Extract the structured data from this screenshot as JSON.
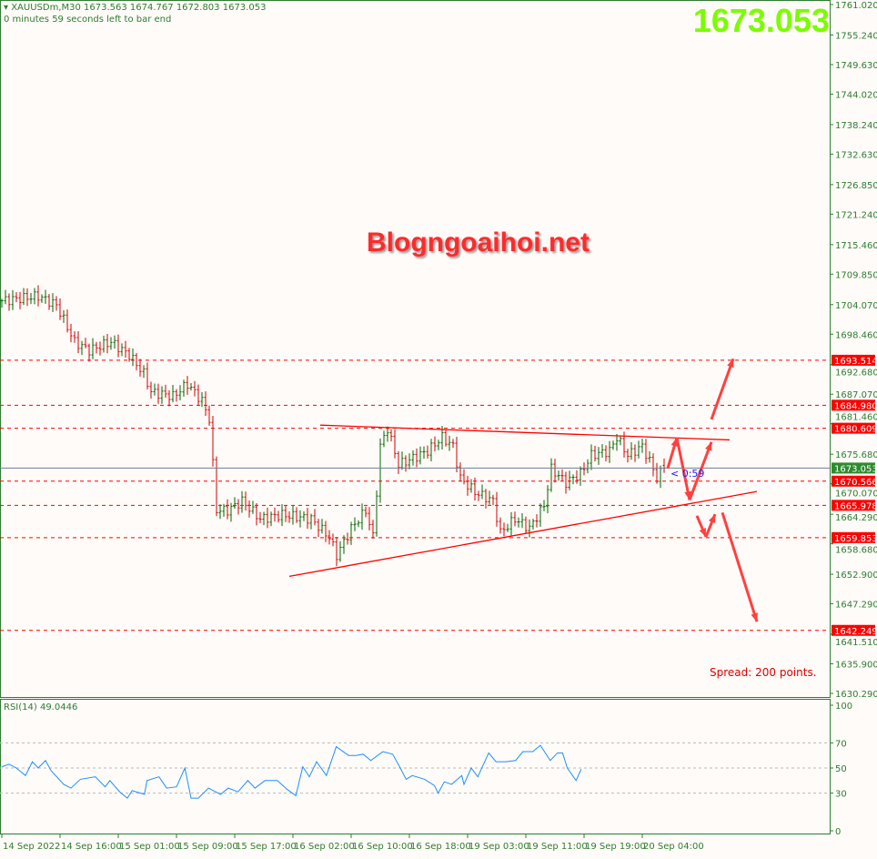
{
  "header": {
    "symbol_line": "XAUUSDm,M30  1673.563 1674.767 1672.803 1673.053",
    "timer_line": "0 minutes 59 seconds left to bar end"
  },
  "big_price": "1673.053",
  "watermark": "Blogngoaihoi.net",
  "spread_text": "Spread: 200 points.",
  "countdown": "< 0:59",
  "rsi_label": "RSI(14) 49.0446",
  "colors": {
    "axis": "#2e7d32",
    "bull": "#006400",
    "bear": "#d00000",
    "levels": "#ff0000",
    "current": "#6b7f99",
    "rsi": "#1e90ff",
    "big_price": "#7cfc00",
    "arrows": "#ff4040"
  },
  "chart_data": {
    "type": "candlestick",
    "symbol": "XAUUSDm",
    "timeframe": "M30",
    "ylim": [
      1630.29,
      1761.02
    ],
    "y_ticks": [
      "1761.020",
      "1755.240",
      "1749.630",
      "1744.020",
      "1738.240",
      "1732.630",
      "1726.850",
      "1721.240",
      "1715.460",
      "1709.850",
      "1704.070",
      "1698.460",
      "1692.680",
      "1687.070",
      "1681.460",
      "1675.680",
      "1670.070",
      "1664.290",
      "1658.680",
      "1652.900",
      "1647.290",
      "1641.510",
      "1635.900",
      "1630.290"
    ],
    "x_ticks": [
      {
        "bar": 0,
        "label": "14 Sep 2022"
      },
      {
        "bar": 16,
        "label": "14 Sep 16:00"
      },
      {
        "bar": 32,
        "label": "15 Sep 01:00"
      },
      {
        "bar": 48,
        "label": "15 Sep 09:00"
      },
      {
        "bar": 64,
        "label": "15 Sep 17:00"
      },
      {
        "bar": 80,
        "label": "16 Sep 02:00"
      },
      {
        "bar": 96,
        "label": "16 Sep 10:00"
      },
      {
        "bar": 112,
        "label": "16 Sep 18:00"
      },
      {
        "bar": 128,
        "label": "19 Sep 03:00"
      },
      {
        "bar": 144,
        "label": "19 Sep 11:00"
      },
      {
        "bar": 160,
        "label": "19 Sep 19:00"
      },
      {
        "bar": 176,
        "label": "20 Sep 04:00"
      }
    ],
    "close_path": [
      [
        0,
        1704.8
      ],
      [
        10,
        1705.7
      ],
      [
        15,
        1704
      ],
      [
        20,
        1697
      ],
      [
        24,
        1695.4
      ],
      [
        30,
        1697
      ],
      [
        35,
        1694.5
      ],
      [
        39,
        1691
      ],
      [
        41,
        1687.5
      ],
      [
        47,
        1686.7
      ],
      [
        51,
        1689
      ],
      [
        55,
        1685.8
      ],
      [
        57,
        1682.4
      ],
      [
        59,
        1665.1
      ],
      [
        62,
        1665
      ],
      [
        66,
        1666.8
      ],
      [
        71,
        1663.4
      ],
      [
        77,
        1664.2
      ],
      [
        85,
        1663.4
      ],
      [
        90,
        1659.9
      ],
      [
        92,
        1656.5
      ],
      [
        96,
        1661.6
      ],
      [
        100,
        1665
      ],
      [
        102,
        1660
      ],
      [
        104,
        1677.2
      ],
      [
        106,
        1680.6
      ],
      [
        109,
        1673.7
      ],
      [
        112,
        1674.6
      ],
      [
        117,
        1676.3
      ],
      [
        121,
        1678.9
      ],
      [
        124,
        1677.2
      ],
      [
        126,
        1671.1
      ],
      [
        130,
        1668.5
      ],
      [
        135,
        1666.8
      ],
      [
        137,
        1660.8
      ],
      [
        141,
        1663.4
      ],
      [
        145,
        1661.6
      ],
      [
        149,
        1666
      ],
      [
        151,
        1672.9
      ],
      [
        155,
        1670.3
      ],
      [
        159,
        1672
      ],
      [
        162,
        1675.5
      ],
      [
        167,
        1676.3
      ],
      [
        169,
        1678.9
      ],
      [
        172,
        1675.5
      ],
      [
        176,
        1677.2
      ],
      [
        179,
        1672.9
      ],
      [
        180,
        1671.1
      ],
      [
        182,
        1673.053
      ]
    ],
    "last_ohlc": {
      "open": 1673.563,
      "high": 1674.767,
      "low": 1672.803,
      "close": 1673.053
    },
    "levels": [
      {
        "price": 1693.514,
        "label": "1693.514",
        "style": "dashed"
      },
      {
        "price": 1684.98,
        "label": "1684.980",
        "style": "dashed"
      },
      {
        "price": 1680.609,
        "label": "1680.609",
        "style": "dashed"
      },
      {
        "price": 1673.053,
        "label": "1673.053",
        "style": "current"
      },
      {
        "price": 1670.566,
        "label": "1670.566",
        "style": "dashed"
      },
      {
        "price": 1665.978,
        "label": "1665.978",
        "style": "dashed"
      },
      {
        "price": 1659.853,
        "label": "1659.853",
        "style": "dashed"
      },
      {
        "price": 1642.249,
        "label": "1642.249",
        "style": "dashed"
      }
    ],
    "trendlines": [
      {
        "name": "upper",
        "from": [
          87.5,
          1681.2
        ],
        "to": [
          200,
          1678.4
        ]
      },
      {
        "name": "lower",
        "from": [
          79,
          1652.5
        ],
        "to": [
          207.5,
          1668.6
        ]
      }
    ],
    "arrows": [
      {
        "from": [
          183,
          1673
        ],
        "to": [
          185.5,
          1678.8
        ]
      },
      {
        "from": [
          185.5,
          1678.8
        ],
        "to": [
          189,
          1667
        ]
      },
      {
        "from": [
          189,
          1667
        ],
        "to": [
          195,
          1678
        ]
      },
      {
        "from": [
          195,
          1682.3
        ],
        "to": [
          201,
          1693.8
        ]
      },
      {
        "from": [
          191,
          1664
        ],
        "to": [
          193.5,
          1660
        ]
      },
      {
        "from": [
          193.5,
          1660
        ],
        "to": [
          196,
          1664.3
        ]
      },
      {
        "from": [
          198,
          1664.6
        ],
        "to": [
          207.5,
          1643.9
        ]
      }
    ],
    "rsi": {
      "period": 14,
      "last": 49.0446,
      "ylim": [
        0,
        100
      ],
      "y_ticks": [
        100,
        70,
        50,
        30,
        0
      ],
      "levels": [
        70,
        50,
        30
      ],
      "values": [
        [
          0,
          51
        ],
        [
          2,
          53
        ],
        [
          4,
          50
        ],
        [
          6.5,
          44
        ],
        [
          8.4,
          55
        ],
        [
          10,
          50
        ],
        [
          12,
          56
        ],
        [
          13.5,
          48
        ],
        [
          17,
          37
        ],
        [
          19,
          34
        ],
        [
          21.6,
          41
        ],
        [
          25.7,
          43
        ],
        [
          28.4,
          35
        ],
        [
          29.7,
          40
        ],
        [
          32.4,
          31
        ],
        [
          34.5,
          26
        ],
        [
          35.8,
          32
        ],
        [
          39.2,
          29
        ],
        [
          39.9,
          40
        ],
        [
          43.2,
          43
        ],
        [
          45.3,
          34
        ],
        [
          48,
          35
        ],
        [
          50.3,
          50
        ],
        [
          52,
          26
        ],
        [
          54,
          26
        ],
        [
          56.8,
          34
        ],
        [
          60.1,
          29
        ],
        [
          62.2,
          34
        ],
        [
          64.9,
          31
        ],
        [
          67.6,
          40
        ],
        [
          69.6,
          34
        ],
        [
          72.3,
          40
        ],
        [
          75.7,
          40
        ],
        [
          78.4,
          33
        ],
        [
          80.8,
          28
        ],
        [
          82.7,
          51
        ],
        [
          84.5,
          43
        ],
        [
          86.5,
          55
        ],
        [
          89.2,
          44
        ],
        [
          91.9,
          67
        ],
        [
          95.3,
          60
        ],
        [
          97.3,
          60
        ],
        [
          99.3,
          61
        ],
        [
          101.4,
          56
        ],
        [
          104.7,
          63
        ],
        [
          107.4,
          61
        ],
        [
          109.5,
          50
        ],
        [
          111.1,
          41
        ],
        [
          112.8,
          44
        ],
        [
          116.2,
          41
        ],
        [
          118.9,
          36
        ],
        [
          119.9,
          30
        ],
        [
          121.6,
          39
        ],
        [
          123.6,
          37
        ],
        [
          126.4,
          44
        ],
        [
          127,
          37
        ],
        [
          129,
          50
        ],
        [
          130.8,
          43
        ],
        [
          133.8,
          62
        ],
        [
          135.8,
          55
        ],
        [
          138.5,
          55
        ],
        [
          141.2,
          56
        ],
        [
          143.2,
          63
        ],
        [
          145.9,
          63
        ],
        [
          148,
          68
        ],
        [
          150.7,
          56
        ],
        [
          152.7,
          62
        ],
        [
          154.1,
          62
        ],
        [
          155.4,
          50
        ],
        [
          157.8,
          40
        ],
        [
          159.2,
          49
        ]
      ]
    }
  }
}
